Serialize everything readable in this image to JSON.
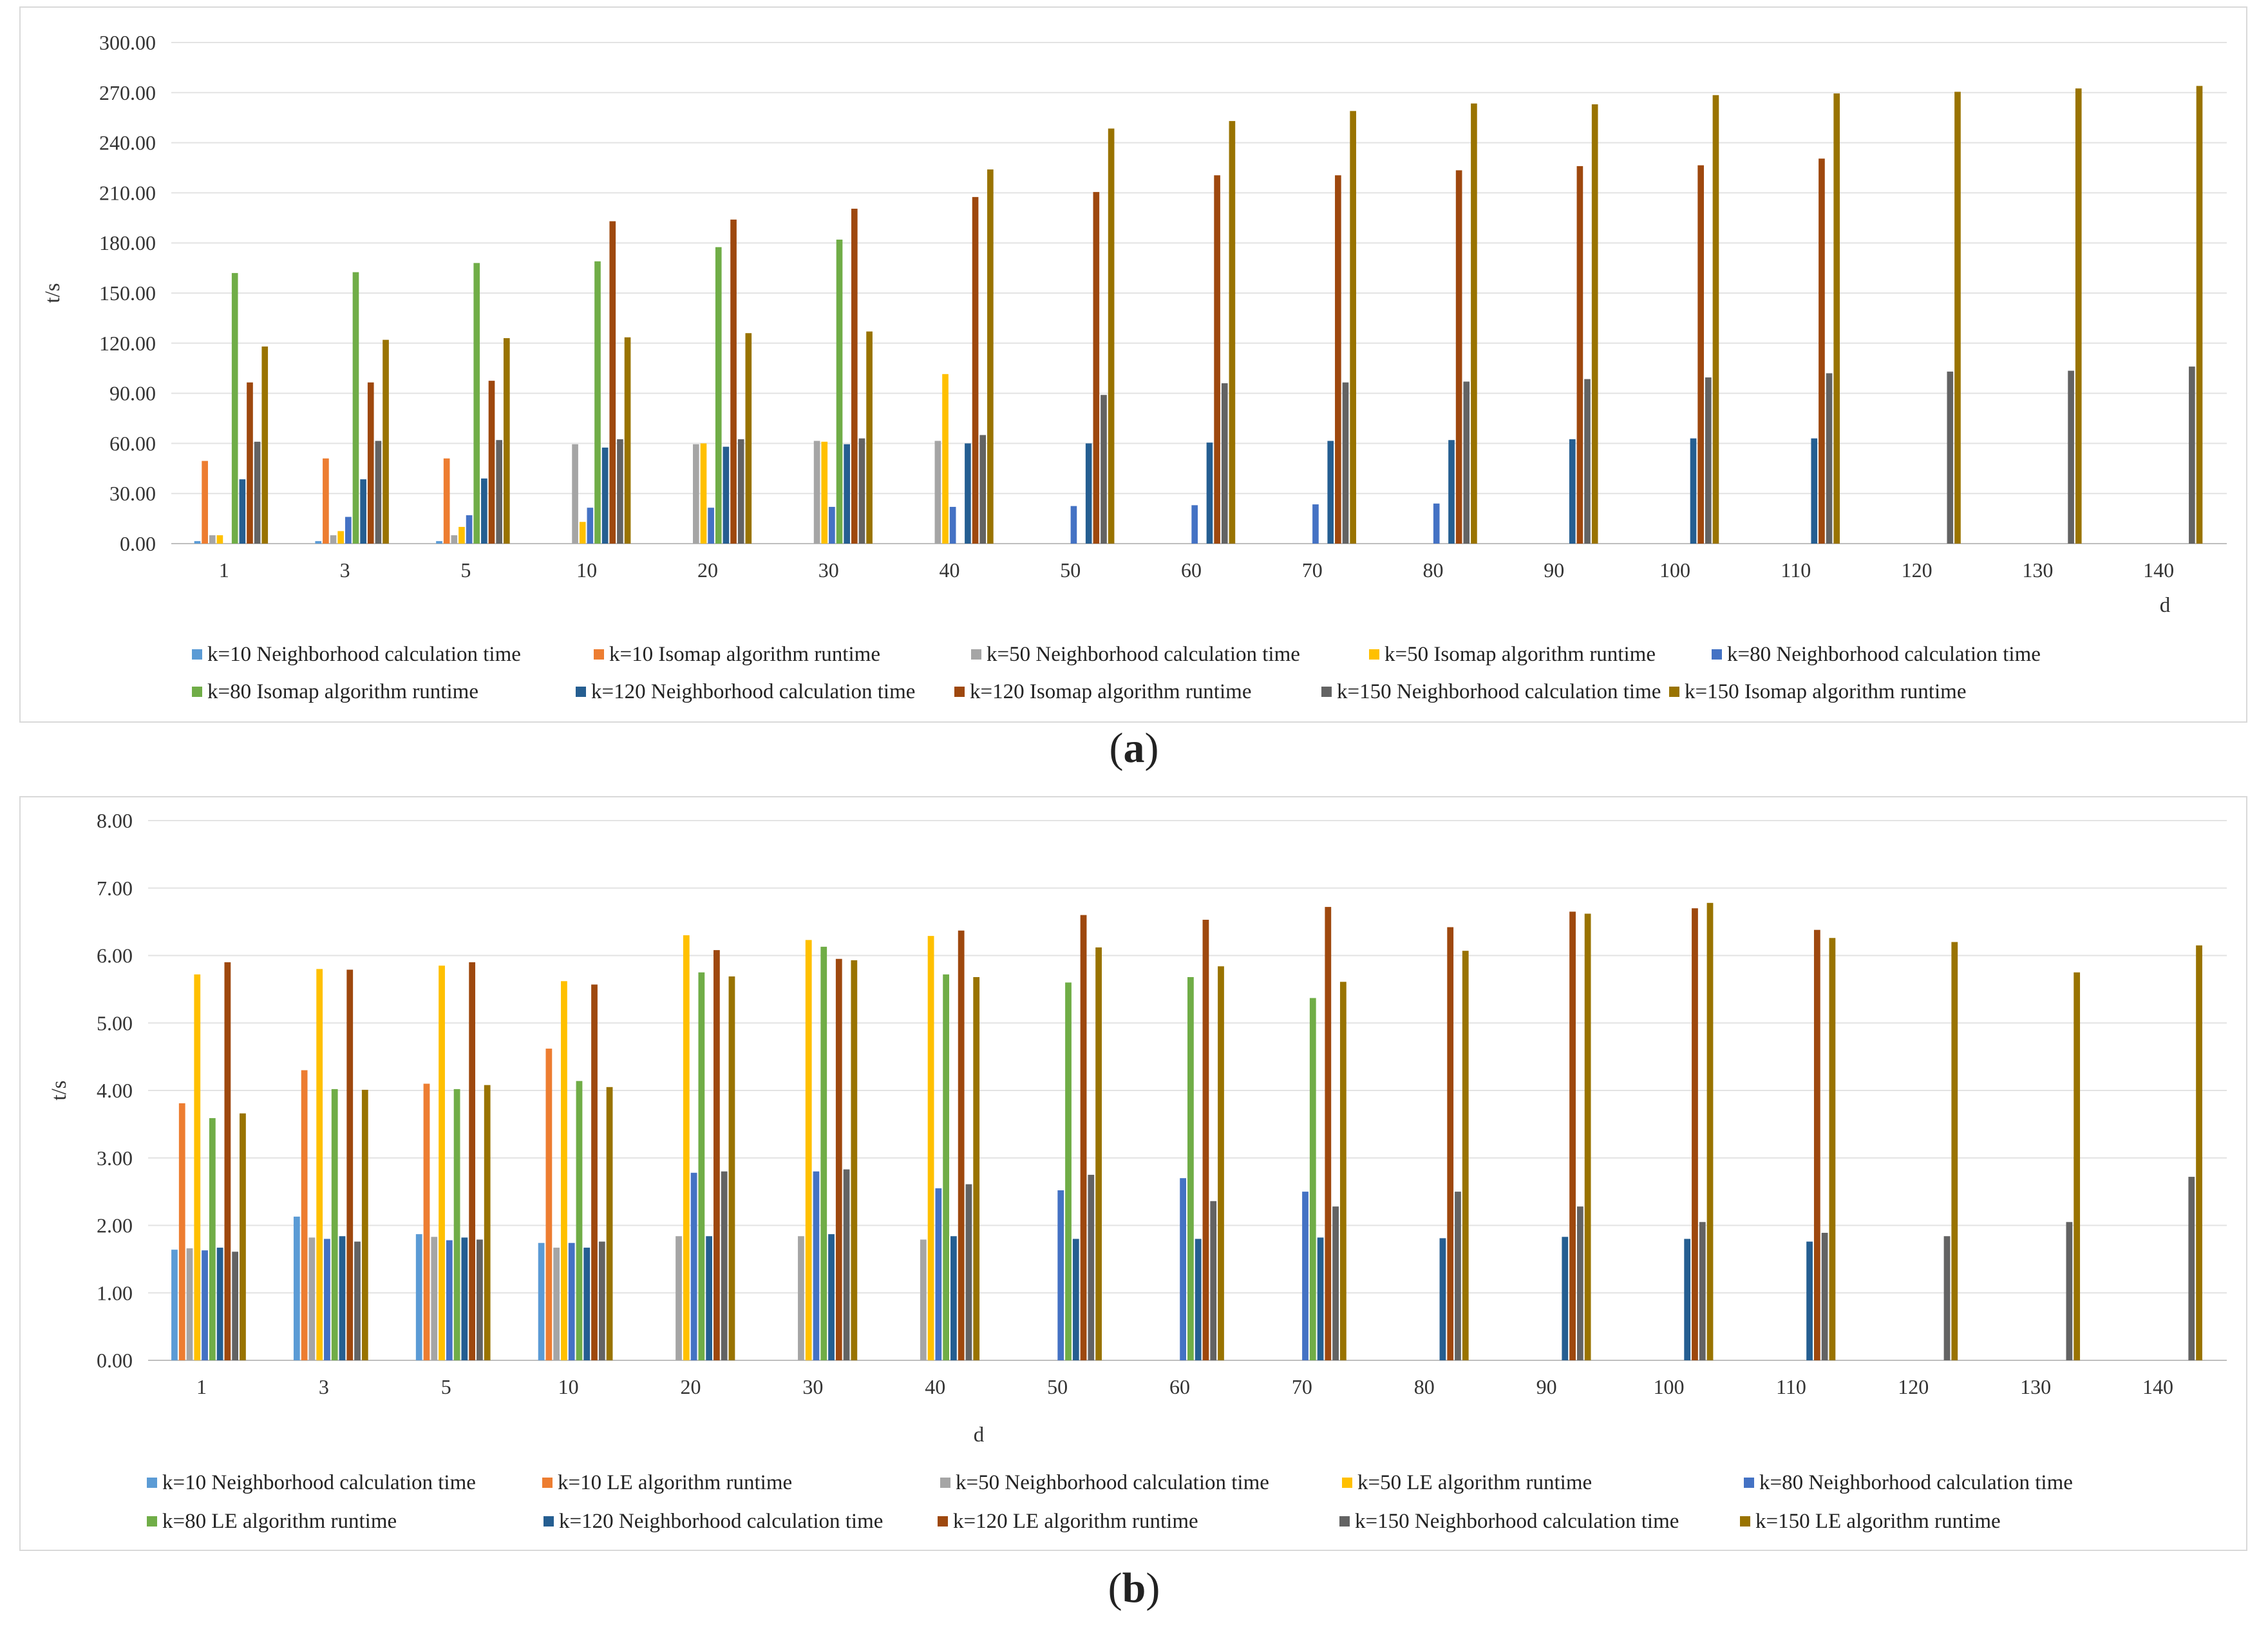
{
  "chart_data": [
    {
      "type": "bar",
      "panel_label": "a",
      "caption_open": "(",
      "caption_close": ")",
      "title": "",
      "xlabel": "d",
      "ylabel": "t/s",
      "ylim": [
        0,
        300
      ],
      "ytick_step": 30,
      "ytick_labels": [
        "0.00",
        "30.00",
        "60.00",
        "90.00",
        "120.00",
        "150.00",
        "180.00",
        "210.00",
        "240.00",
        "270.00",
        "300.00"
      ],
      "grid": true,
      "legend_position": "bottom",
      "categories": [
        "1",
        "3",
        "5",
        "10",
        "20",
        "30",
        "40",
        "50",
        "60",
        "70",
        "80",
        "90",
        "100",
        "110",
        "120",
        "130",
        "140"
      ],
      "series": [
        {
          "name": "k=10 Neighborhood calculation time",
          "color": "#5B9BD5",
          "values": [
            1.5,
            1.5,
            1.5,
            null,
            null,
            null,
            null,
            null,
            null,
            null,
            null,
            null,
            null,
            null,
            null,
            null,
            null
          ]
        },
        {
          "name": "k=10 Isomap algorithm runtime",
          "color": "#ED7D31",
          "values": [
            49.5,
            51,
            51,
            null,
            null,
            null,
            null,
            null,
            null,
            null,
            null,
            null,
            null,
            null,
            null,
            null,
            null
          ]
        },
        {
          "name": "k=50 Neighborhood calculation time",
          "color": "#A5A5A5",
          "values": [
            5,
            5,
            5,
            59.5,
            59.5,
            61.5,
            61.5,
            null,
            null,
            null,
            null,
            null,
            null,
            null,
            null,
            null,
            null
          ]
        },
        {
          "name": "k=50 Isomap algorithm runtime",
          "color": "#FFC000",
          "values": [
            5,
            7.5,
            10,
            13,
            60,
            61,
            101.5,
            null,
            null,
            null,
            null,
            null,
            null,
            null,
            null,
            null,
            null
          ]
        },
        {
          "name": "k=80 Neighborhood calculation time",
          "color": "#4472C4",
          "values": [
            null,
            16,
            17,
            21.5,
            21.5,
            22,
            22,
            22.5,
            23,
            23.5,
            24,
            null,
            null,
            null,
            null,
            null,
            null
          ]
        },
        {
          "name": "k=80 Isomap algorithm runtime",
          "color": "#70AD47",
          "values": [
            162,
            162.5,
            168,
            169,
            177.5,
            182,
            null,
            null,
            null,
            null,
            null,
            null,
            null,
            null,
            null,
            null,
            null
          ]
        },
        {
          "name": "k=120 Neighborhood calculation time",
          "color": "#255E91",
          "values": [
            38.5,
            38.5,
            39,
            57.5,
            58,
            59.5,
            60,
            60,
            60.5,
            61.5,
            62,
            62.5,
            63,
            63,
            null,
            null,
            null
          ]
        },
        {
          "name": "k=120 Isomap algorithm runtime",
          "color": "#9E480E",
          "values": [
            96.5,
            96.5,
            97.5,
            193,
            194,
            200.5,
            207.5,
            210.5,
            220.5,
            220.5,
            223.5,
            226,
            226.5,
            230.5,
            null,
            null,
            null
          ]
        },
        {
          "name": "k=150 Neighborhood calculation time",
          "color": "#636363",
          "values": [
            61,
            61.5,
            62,
            62.5,
            62.5,
            63,
            65,
            89,
            96,
            96.5,
            97,
            98.5,
            99.5,
            102,
            103,
            103.5,
            106
          ]
        },
        {
          "name": "k=150 Isomap algorithm runtime",
          "color": "#997300",
          "values": [
            118,
            122,
            123,
            123.5,
            126,
            127,
            224,
            248.5,
            253,
            259,
            263.5,
            263,
            268.5,
            269.5,
            270.5,
            272.5,
            274
          ]
        }
      ]
    },
    {
      "type": "bar",
      "panel_label": "b",
      "caption_open": "(",
      "caption_close": ")",
      "title": "",
      "xlabel": "d",
      "ylabel": "t/s",
      "ylim": [
        0,
        8
      ],
      "ytick_step": 1,
      "ytick_labels": [
        "0.00",
        "1.00",
        "2.00",
        "3.00",
        "4.00",
        "5.00",
        "6.00",
        "7.00",
        "8.00"
      ],
      "grid": true,
      "legend_position": "bottom",
      "categories": [
        "1",
        "3",
        "5",
        "10",
        "20",
        "30",
        "40",
        "50",
        "60",
        "70",
        "80",
        "90",
        "100",
        "110",
        "120",
        "130",
        "140"
      ],
      "series": [
        {
          "name": "k=10 Neighborhood calculation time",
          "color": "#5B9BD5",
          "values": [
            1.64,
            2.13,
            1.87,
            1.74,
            null,
            null,
            null,
            null,
            null,
            null,
            null,
            null,
            null,
            null,
            null,
            null,
            null
          ]
        },
        {
          "name": "k=10 LE algorithm runtime",
          "color": "#ED7D31",
          "values": [
            3.81,
            4.3,
            4.1,
            4.62,
            null,
            null,
            null,
            null,
            null,
            null,
            null,
            null,
            null,
            null,
            null,
            null,
            null
          ]
        },
        {
          "name": "k=50 Neighborhood calculation time",
          "color": "#A5A5A5",
          "values": [
            1.66,
            1.82,
            1.83,
            1.67,
            1.84,
            1.84,
            1.79,
            null,
            null,
            null,
            null,
            null,
            null,
            null,
            null,
            null,
            null
          ]
        },
        {
          "name": "k=50 LE algorithm runtime",
          "color": "#FFC000",
          "values": [
            5.72,
            5.8,
            5.85,
            5.62,
            6.3,
            6.23,
            6.29,
            null,
            null,
            null,
            null,
            null,
            null,
            null,
            null,
            null,
            null
          ]
        },
        {
          "name": "k=80 Neighborhood calculation time",
          "color": "#4472C4",
          "values": [
            1.63,
            1.8,
            1.78,
            1.74,
            2.78,
            2.8,
            2.55,
            2.52,
            2.7,
            2.5,
            null,
            null,
            null,
            null,
            null,
            null,
            null
          ]
        },
        {
          "name": "k=80 LE algorithm runtime",
          "color": "#70AD47",
          "values": [
            3.59,
            4.02,
            4.02,
            4.14,
            5.75,
            6.13,
            5.72,
            5.6,
            5.68,
            5.37,
            null,
            null,
            null,
            null,
            null,
            null,
            null
          ]
        },
        {
          "name": "k=120 Neighborhood calculation time",
          "color": "#255E91",
          "values": [
            1.67,
            1.84,
            1.82,
            1.67,
            1.84,
            1.87,
            1.84,
            1.8,
            1.8,
            1.82,
            1.81,
            1.83,
            1.8,
            1.76,
            null,
            null,
            null
          ]
        },
        {
          "name": "k=120 LE algorithm runtime",
          "color": "#9E480E",
          "values": [
            5.9,
            5.79,
            5.9,
            5.57,
            6.08,
            5.95,
            6.37,
            6.6,
            6.53,
            6.72,
            6.42,
            6.65,
            6.7,
            6.38,
            null,
            null,
            null
          ]
        },
        {
          "name": "k=150 Neighborhood calculation time",
          "color": "#636363",
          "values": [
            1.61,
            1.76,
            1.79,
            1.76,
            2.8,
            2.83,
            2.61,
            2.75,
            2.36,
            2.28,
            2.5,
            2.28,
            2.05,
            1.89,
            1.84,
            2.05,
            2.72
          ]
        },
        {
          "name": "k=150 LE algorithm runtime",
          "color": "#997300",
          "values": [
            3.66,
            4.01,
            4.08,
            4.05,
            5.69,
            5.93,
            5.68,
            6.12,
            5.84,
            5.61,
            6.07,
            6.62,
            6.78,
            6.26,
            6.2,
            5.75,
            6.15
          ]
        }
      ]
    }
  ]
}
